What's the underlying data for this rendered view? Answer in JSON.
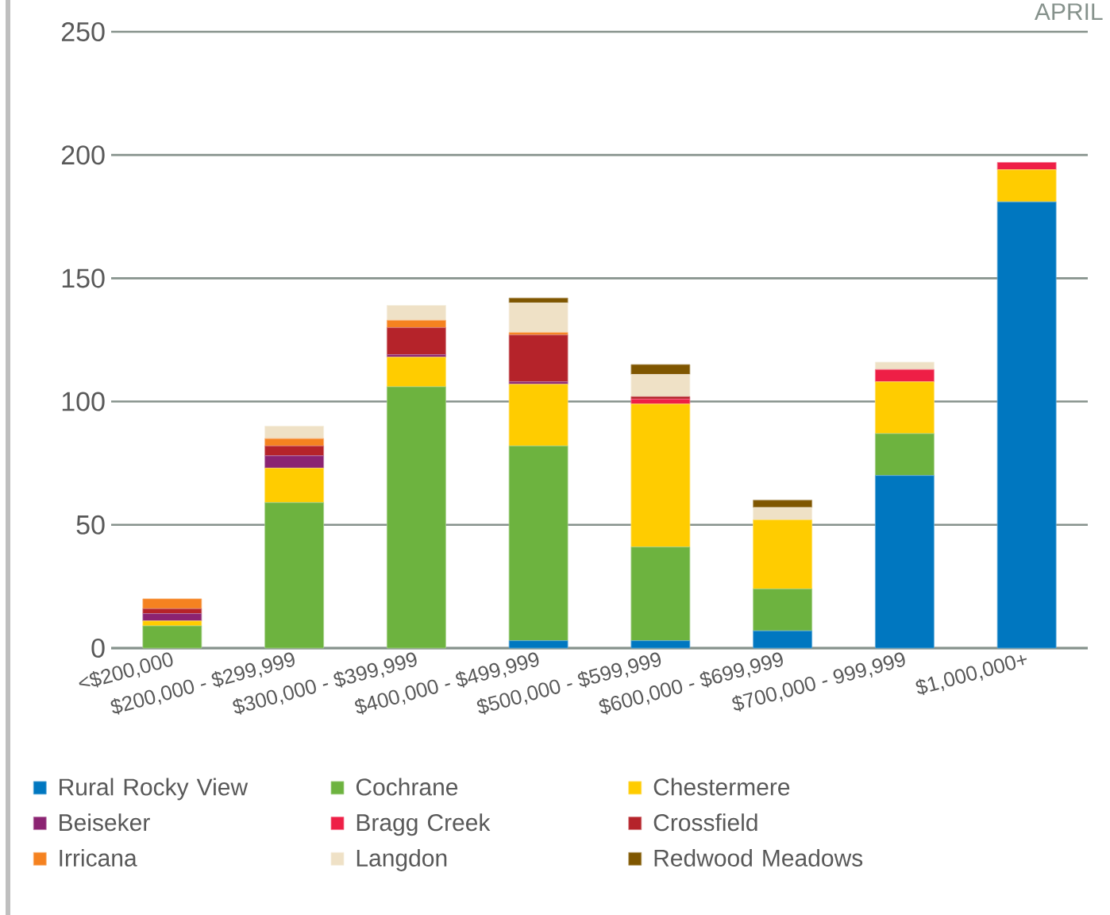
{
  "chart_data": {
    "type": "bar",
    "title": "APRIL",
    "stacked": true,
    "grid": "y",
    "legend": "bottom",
    "categories": [
      "<$200,000",
      "$200,000 - $299,999",
      "$300,000 - $399,999",
      "$400,000 - $499,999",
      "$500,000 - $599,999",
      "$600,000 - $699,999",
      "$700,000 - 999,999",
      "$1,000,000+"
    ],
    "ylim": [
      0,
      250
    ],
    "yticks": [
      0,
      50,
      100,
      150,
      200,
      250
    ],
    "series": [
      {
        "name": "Rural Rocky View",
        "color": "#0077c0",
        "values": [
          0,
          0,
          0,
          3,
          3,
          7,
          70,
          181
        ]
      },
      {
        "name": "Cochrane",
        "color": "#6db33f",
        "values": [
          9,
          59,
          106,
          79,
          38,
          17,
          17,
          0
        ]
      },
      {
        "name": "Chestermere",
        "color": "#ffcc00",
        "values": [
          2,
          14,
          12,
          25,
          58,
          28,
          21,
          13
        ]
      },
      {
        "name": "Beiseker",
        "color": "#8b2372",
        "values": [
          3,
          5,
          1,
          1,
          0,
          0,
          0,
          0
        ]
      },
      {
        "name": "Bragg Creek",
        "color": "#ee1f46",
        "values": [
          0,
          0,
          0,
          0,
          2,
          0,
          5,
          3
        ]
      },
      {
        "name": "Crossfield",
        "color": "#b5232a",
        "values": [
          2,
          4,
          11,
          19,
          1,
          0,
          0,
          0
        ]
      },
      {
        "name": "Irricana",
        "color": "#f58220",
        "values": [
          4,
          3,
          3,
          1,
          0,
          0,
          0,
          0
        ]
      },
      {
        "name": "Langdon",
        "color": "#efe1c6",
        "values": [
          0,
          5,
          6,
          12,
          9,
          5,
          3,
          0
        ]
      },
      {
        "name": "Redwood Meadows",
        "color": "#7f5600",
        "values": [
          0,
          0,
          0,
          2,
          4,
          3,
          0,
          0
        ]
      }
    ]
  }
}
